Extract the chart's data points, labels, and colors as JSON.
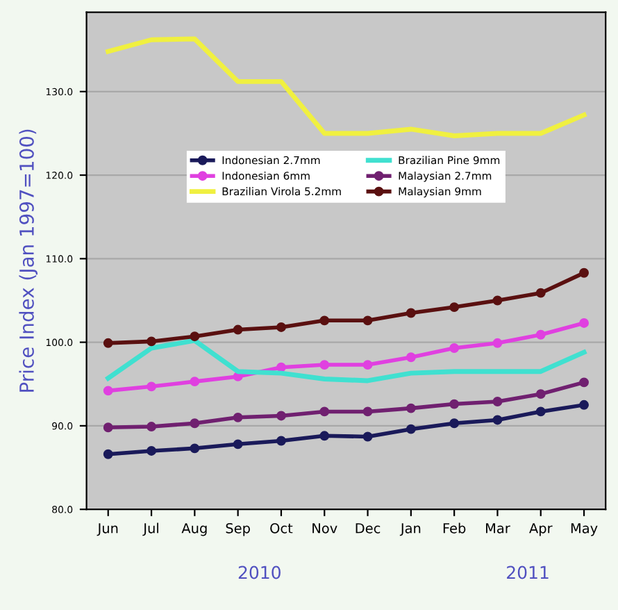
{
  "chart_data": {
    "type": "line",
    "ylabel": "Price Index (Jan 1997=100)",
    "categories": [
      "Jun",
      "Jul",
      "Aug",
      "Sep",
      "Oct",
      "Nov",
      "Dec",
      "Jan",
      "Feb",
      "Mar",
      "Apr",
      "May"
    ],
    "series": [
      {
        "name": "Indonesian 2.7mm",
        "color": "#1a1a5a",
        "marker": "circle",
        "values": [
          86.6,
          87.0,
          87.3,
          87.8,
          88.2,
          88.8,
          88.7,
          89.6,
          90.3,
          90.7,
          91.7,
          92.5
        ]
      },
      {
        "name": "Indonesian 6mm",
        "color": "#e040e0",
        "marker": "circle",
        "values": [
          94.2,
          94.7,
          95.3,
          95.9,
          97.0,
          97.3,
          97.3,
          98.2,
          99.3,
          99.9,
          100.9,
          102.3
        ]
      },
      {
        "name": "Brazilian Virola 5.2mm",
        "color": "#f0f040",
        "marker": "none",
        "values": [
          134.8,
          136.2,
          136.3,
          131.2,
          131.2,
          125.0,
          125.0,
          125.5,
          124.7,
          125.0,
          125.0,
          127.2
        ]
      },
      {
        "name": "Brazilian Pine 9mm",
        "color": "#40e0d0",
        "marker": "none",
        "values": [
          95.7,
          99.3,
          100.2,
          96.5,
          96.3,
          95.6,
          95.4,
          96.3,
          96.5,
          96.5,
          96.5,
          98.8
        ]
      },
      {
        "name": "Malaysian 2.7mm",
        "color": "#702070",
        "marker": "circle",
        "values": [
          89.8,
          89.9,
          90.3,
          91.0,
          91.2,
          91.7,
          91.7,
          92.1,
          92.6,
          92.9,
          93.8,
          95.2
        ]
      },
      {
        "name": "Malaysian 9mm",
        "color": "#5a1010",
        "marker": "circle",
        "values": [
          99.9,
          100.1,
          100.7,
          101.5,
          101.8,
          102.6,
          102.6,
          103.5,
          104.2,
          105.0,
          105.9,
          108.3
        ]
      }
    ],
    "ylim": [
      80,
      139.5
    ],
    "yticks": [
      {
        "value": 80,
        "label": "80.0"
      },
      {
        "value": 90,
        "label": "90.0"
      },
      {
        "value": 100,
        "label": "100.0"
      },
      {
        "value": 110,
        "label": "110.0"
      },
      {
        "value": 120,
        "label": "120.0"
      },
      {
        "value": 130,
        "label": "130.0"
      }
    ],
    "grid": "y",
    "legend": "top",
    "annotations": [
      "2010",
      "2011"
    ]
  }
}
